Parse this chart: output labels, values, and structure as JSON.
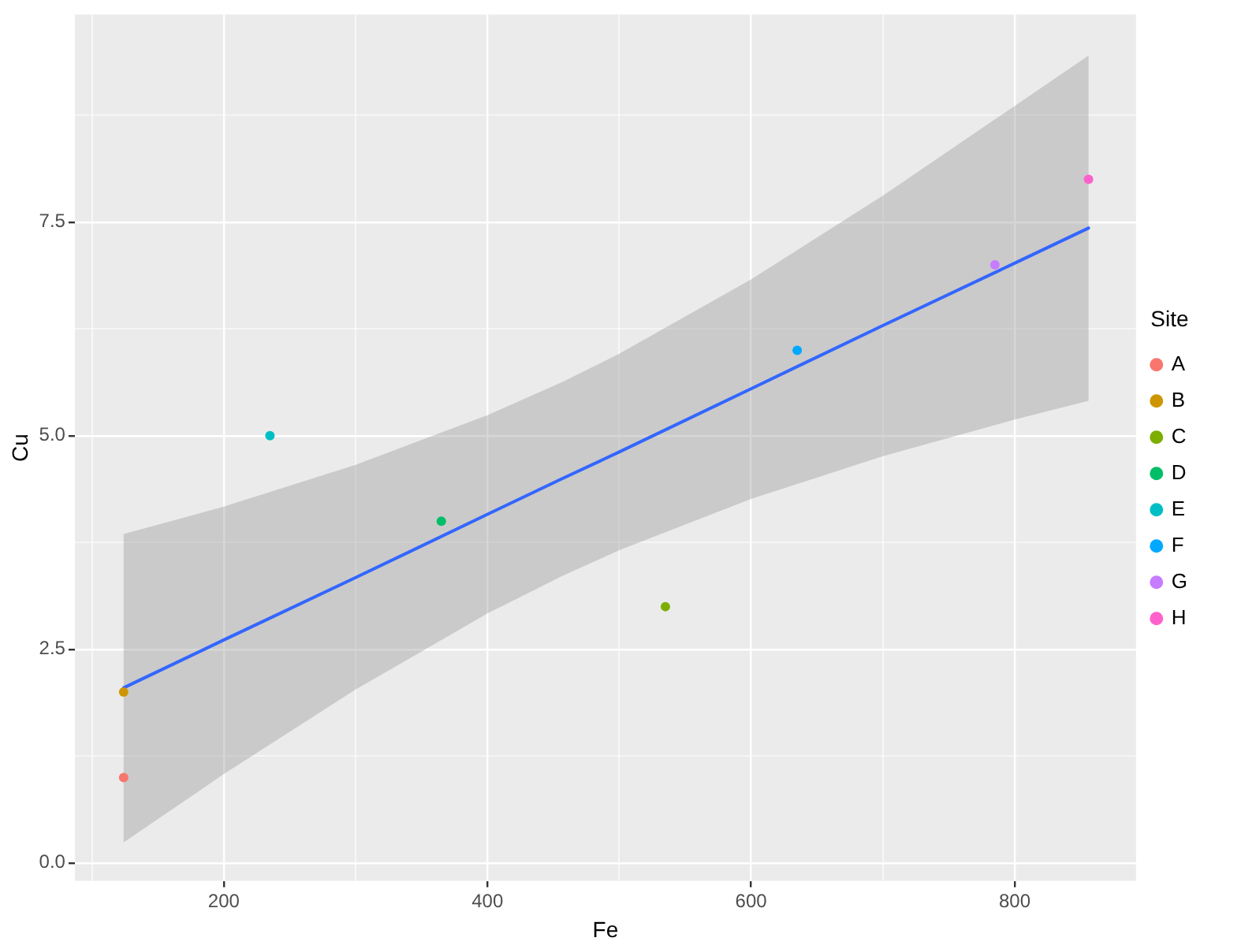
{
  "chart_data": {
    "type": "scatter",
    "xlabel": "Fe",
    "ylabel": "Cu",
    "legend_title": "Site",
    "legend": "right",
    "grid": true,
    "marker": "circle",
    "xlim": [
      87,
      892
    ],
    "ylim": [
      -0.21,
      9.93
    ],
    "xticks": [
      {
        "value": 100,
        "label": null
      },
      200,
      {
        "value": 300,
        "label": null
      },
      400,
      {
        "value": 500,
        "label": null
      },
      600,
      {
        "value": 700,
        "label": null
      },
      800
    ],
    "yticks": [
      {
        "value": 0,
        "label": "0.0"
      },
      {
        "value": 1.25,
        "label": null
      },
      2.5,
      {
        "value": 3.75,
        "label": null
      },
      {
        "value": 5,
        "label": "5.0"
      },
      {
        "value": 6.25,
        "label": null
      },
      7.5,
      {
        "value": 8.75,
        "label": null
      }
    ],
    "series": [
      {
        "name": "A",
        "color": "#f8766d",
        "x": [
          124
        ],
        "values": [
          1
        ]
      },
      {
        "name": "B",
        "color": "#cd9600",
        "x": [
          124
        ],
        "values": [
          2
        ]
      },
      {
        "name": "C",
        "color": "#7cae00",
        "x": [
          535
        ],
        "values": [
          3
        ]
      },
      {
        "name": "D",
        "color": "#00be67",
        "x": [
          365
        ],
        "values": [
          4
        ]
      },
      {
        "name": "E",
        "color": "#00bfc4",
        "x": [
          235
        ],
        "values": [
          5
        ]
      },
      {
        "name": "F",
        "color": "#00a9ff",
        "x": [
          635
        ],
        "values": [
          6
        ]
      },
      {
        "name": "G",
        "color": "#c77cff",
        "x": [
          785
        ],
        "values": [
          7
        ]
      },
      {
        "name": "H",
        "color": "#ff61cc",
        "x": [
          856
        ],
        "values": [
          8
        ]
      },
      {
        "type": "line",
        "marker": "none",
        "color": "#3366ff",
        "x": [
          124,
          200,
          300,
          400,
          457,
          500,
          600,
          700,
          800,
          856
        ],
        "values": [
          2.05,
          2.61,
          3.34,
          4.08,
          4.5,
          4.81,
          5.55,
          6.29,
          7.02,
          7.43
        ],
        "lower": [
          0.24,
          1.04,
          2.03,
          2.92,
          3.36,
          3.66,
          4.26,
          4.76,
          5.19,
          5.41
        ],
        "upper": [
          3.85,
          4.17,
          4.66,
          5.24,
          5.63,
          5.96,
          6.83,
          7.81,
          8.86,
          9.45
        ]
      }
    ]
  }
}
